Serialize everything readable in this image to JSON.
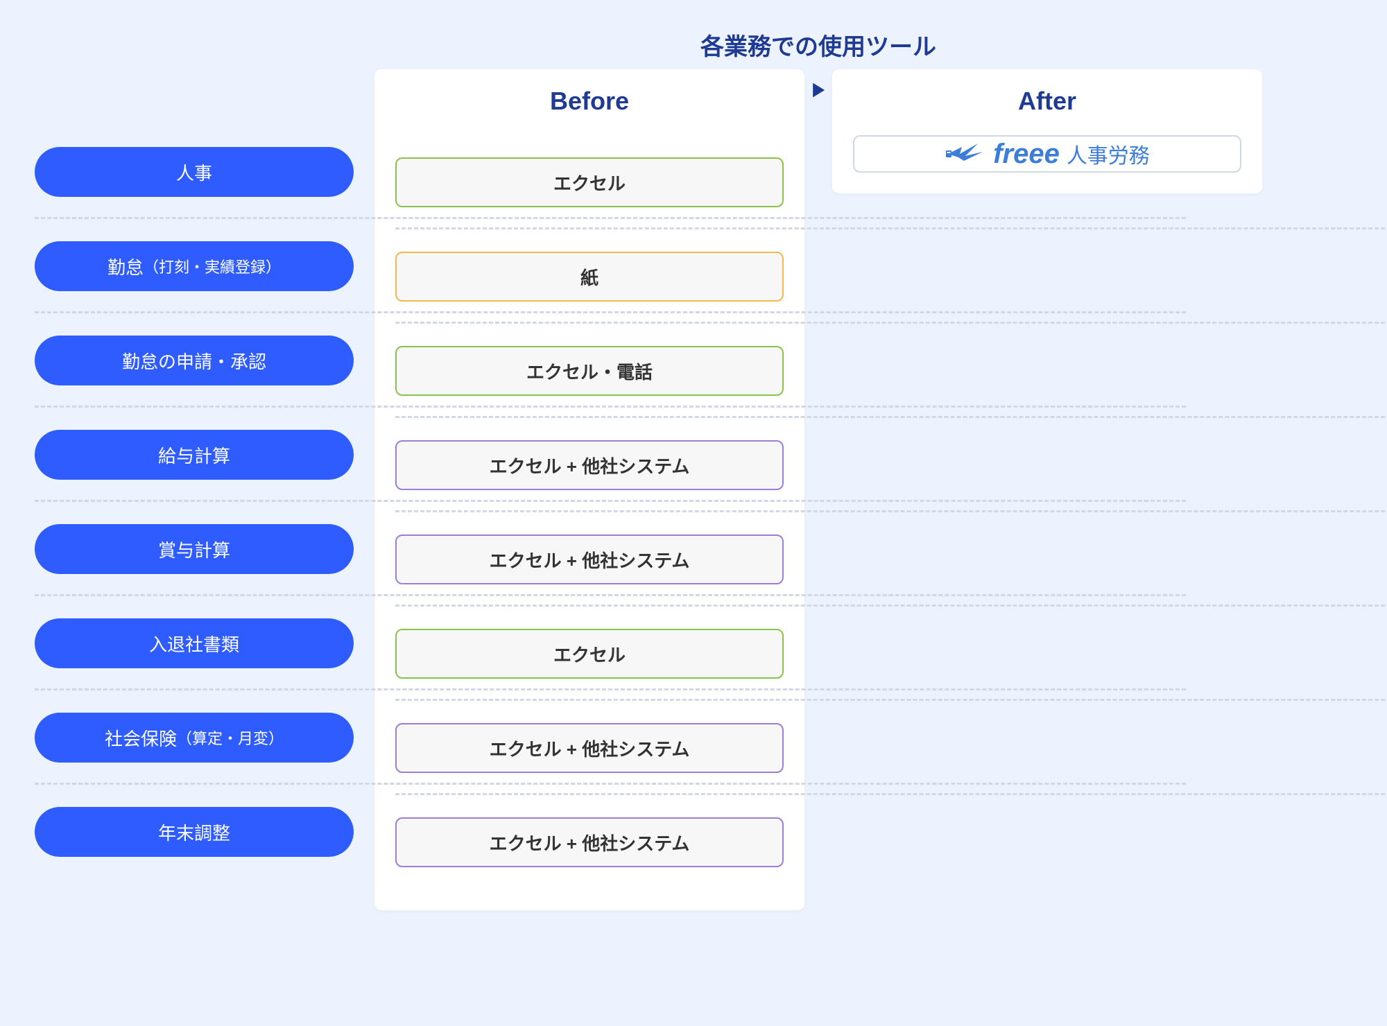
{
  "title": "各業務での使用ツール",
  "before_label": "Before",
  "after_label": "After",
  "after_product_brand": "freee",
  "after_product_name": "人事労務",
  "colors": {
    "page_bg": "#ecf3fe",
    "panel_bg": "#ffffff",
    "title_color": "#1f3a93",
    "pill_bg": "#2e5cff",
    "pill_text": "#ffffff",
    "box_bg": "#f7f7f7",
    "box_text": "#333333",
    "dash_color": "#d0d7e5",
    "logo_color": "#3b7dd8",
    "border_green": "#8bc34a",
    "border_orange": "#f0b94a",
    "border_purple": "#9b7fd4"
  },
  "rows": [
    {
      "category": "人事",
      "category_sub": "",
      "before": "エクセル",
      "border": "border_green"
    },
    {
      "category": "勤怠",
      "category_sub": "（打刻・実績登録）",
      "before": "紙",
      "border": "border_orange"
    },
    {
      "category": "勤怠の申請・承認",
      "category_sub": "",
      "before": "エクセル・電話",
      "border": "border_green"
    },
    {
      "category": "給与計算",
      "category_sub": "",
      "before": "エクセル + 他社システム",
      "border": "border_purple"
    },
    {
      "category": "賞与計算",
      "category_sub": "",
      "before": "エクセル + 他社システム",
      "border": "border_purple"
    },
    {
      "category": "入退社書類",
      "category_sub": "",
      "before": "エクセル",
      "border": "border_green"
    },
    {
      "category": "社会保険",
      "category_sub": "（算定・月変）",
      "before": "エクセル + 他社システム",
      "border": "border_purple"
    },
    {
      "category": "年末調整",
      "category_sub": "",
      "before": "エクセル + 他社システム",
      "border": "border_purple"
    }
  ]
}
